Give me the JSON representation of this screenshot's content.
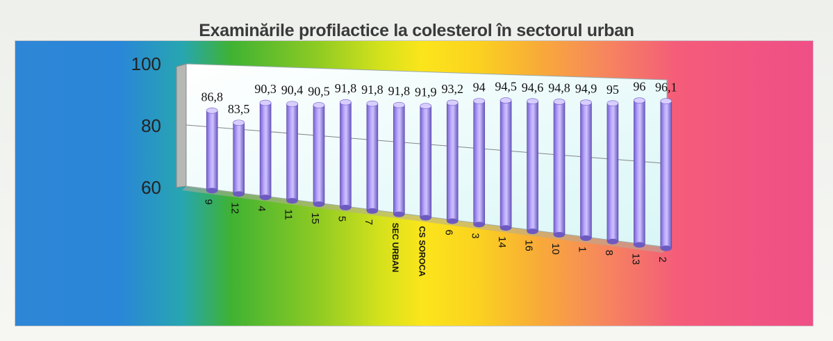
{
  "chart_data": {
    "type": "bar",
    "title": "Examinările profilactice la colesterol în sectorul urban",
    "categories": [
      "9",
      "12",
      "4",
      "11",
      "15",
      "5",
      "7",
      "SEC URBAN",
      "CS SOROCA",
      "6",
      "3",
      "14",
      "16",
      "10",
      "1",
      "8",
      "13",
      "2"
    ],
    "values": [
      86.8,
      83.5,
      90.3,
      90.4,
      90.5,
      91.8,
      91.8,
      91.8,
      91.9,
      93.2,
      94,
      94.5,
      94.6,
      94.8,
      94.9,
      95,
      96,
      96.1
    ],
    "data_labels": [
      "86,8",
      "83,5",
      "90,3",
      "90,4",
      "90,5",
      "91,8",
      "91,8",
      "91,8",
      "91,9",
      "93,2",
      "94",
      "94,5",
      "94,6",
      "94,8",
      "94,9",
      "95",
      "96",
      "96,1"
    ],
    "yticks": [
      "60",
      "80",
      "100"
    ],
    "ylim": [
      60,
      100
    ],
    "xlabel": "",
    "ylabel": "",
    "bar_color": "#a890f0",
    "style": "3d-cylinder"
  }
}
